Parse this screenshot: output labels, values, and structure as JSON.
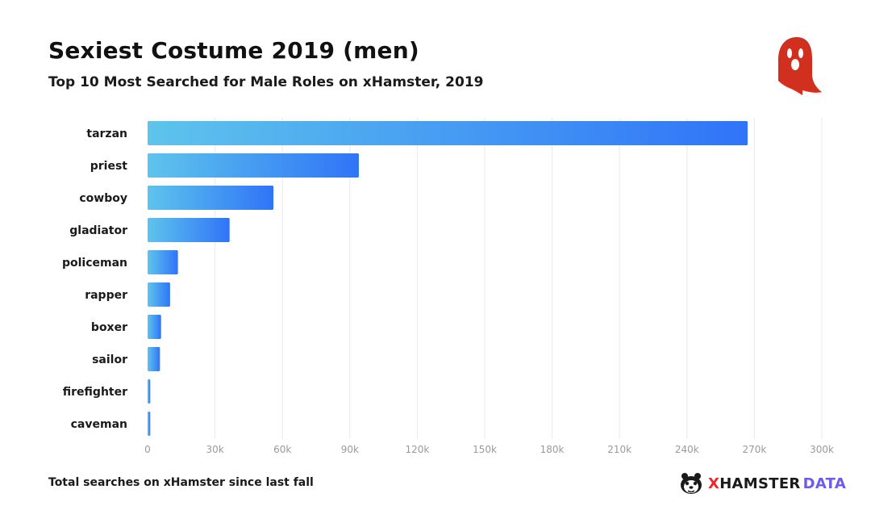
{
  "header": {
    "title": "Sexiest Costume 2019 (men)",
    "subtitle": "Top 10 Most Searched for Male Roles on xHamster, 2019"
  },
  "footer": {
    "note": "Total searches on xHamster since last fall",
    "brand_x": "X",
    "brand_hamster": "HAMSTER",
    "brand_data": "DATA"
  },
  "colors": {
    "bar_start": "#5ec4ec",
    "bar_end": "#2f74f8",
    "grid": "#e8e8e8",
    "ghost": "#d2301f",
    "brand_red": "#e8282b",
    "brand_purple": "#6c5ce7"
  },
  "icons": {
    "ghost": "ghost-icon",
    "brand": "hamster-face-icon"
  },
  "chart_data": {
    "type": "bar",
    "orientation": "horizontal",
    "title": "Sexiest Costume 2019 (men)",
    "subtitle": "Top 10 Most Searched for Male Roles on xHamster, 2019",
    "categories": [
      "tarzan",
      "priest",
      "cowboy",
      "gladiator",
      "policeman",
      "rapper",
      "boxer",
      "sailor",
      "firefighter",
      "caveman"
    ],
    "values": [
      267000,
      94000,
      56000,
      36500,
      13500,
      10000,
      6000,
      5500,
      1200,
      1200
    ],
    "xlabel": "",
    "ylabel": "",
    "xlim": [
      0,
      300000
    ],
    "ticks": [
      0,
      30000,
      60000,
      90000,
      120000,
      150000,
      180000,
      210000,
      240000,
      270000,
      300000
    ],
    "tick_labels": [
      "0",
      "30k",
      "60k",
      "90k",
      "120k",
      "150k",
      "180k",
      "210k",
      "240k",
      "270k",
      "300k"
    ],
    "grid": true,
    "legend": "none"
  }
}
